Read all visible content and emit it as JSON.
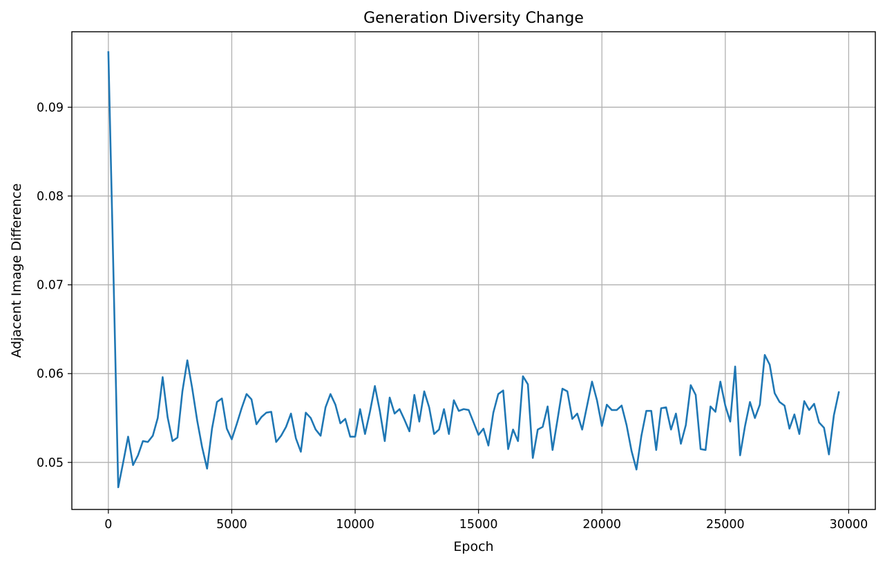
{
  "chart_data": {
    "type": "line",
    "title": "Generation Diversity Change",
    "xlabel": "Epoch",
    "ylabel": "Adjacent Image Difference",
    "xlim": [
      -1480,
      31080
    ],
    "ylim": [
      0.0447,
      0.0985
    ],
    "xticks": [
      0,
      5000,
      10000,
      15000,
      20000,
      25000,
      30000
    ],
    "xtick_labels": [
      "0",
      "5000",
      "10000",
      "15000",
      "20000",
      "25000",
      "30000"
    ],
    "yticks": [
      0.05,
      0.06,
      0.07,
      0.08,
      0.09
    ],
    "ytick_labels": [
      "0.05",
      "0.06",
      "0.07",
      "0.08",
      "0.09"
    ],
    "grid": true,
    "series": [
      {
        "color": "#1f77b4",
        "x": [
          0,
          200,
          400,
          600,
          800,
          1000,
          1200,
          1400,
          1600,
          1800,
          2000,
          2200,
          2400,
          2600,
          2800,
          3000,
          3200,
          3400,
          3600,
          3800,
          4000,
          4200,
          4400,
          4600,
          4800,
          5000,
          5200,
          5400,
          5600,
          5800,
          6000,
          6200,
          6400,
          6600,
          6800,
          7000,
          7200,
          7400,
          7600,
          7800,
          8000,
          8200,
          8400,
          8600,
          8800,
          9000,
          9200,
          9400,
          9600,
          9800,
          10000,
          10200,
          10400,
          10600,
          10800,
          11000,
          11200,
          11400,
          11600,
          11800,
          12000,
          12200,
          12400,
          12600,
          12800,
          13000,
          13200,
          13400,
          13600,
          13800,
          14000,
          14200,
          14400,
          14600,
          14800,
          15000,
          15200,
          15400,
          15600,
          15800,
          16000,
          16200,
          16400,
          16600,
          16800,
          17000,
          17200,
          17400,
          17600,
          17800,
          18000,
          18200,
          18400,
          18600,
          18800,
          19000,
          19200,
          19400,
          19600,
          19800,
          20000,
          20200,
          20400,
          20600,
          20800,
          21000,
          21200,
          21400,
          21600,
          21800,
          22000,
          22200,
          22400,
          22600,
          22800,
          23000,
          23200,
          23400,
          23600,
          23800,
          24000,
          24200,
          24400,
          24600,
          24800,
          25000,
          25200,
          25400,
          25600,
          25800,
          26000,
          26200,
          26400,
          26600,
          26800,
          27000,
          27200,
          27400,
          27600,
          27800,
          28000,
          28200,
          28400,
          28600,
          28800,
          29000,
          29200,
          29400,
          29600
        ],
        "values": [
          0.0962,
          0.072,
          0.0472,
          0.05,
          0.0529,
          0.0497,
          0.0508,
          0.0524,
          0.0523,
          0.053,
          0.055,
          0.0596,
          0.0551,
          0.0524,
          0.0528,
          0.058,
          0.0615,
          0.0583,
          0.0547,
          0.0517,
          0.0493,
          0.0538,
          0.0568,
          0.0572,
          0.0538,
          0.0526,
          0.0543,
          0.0561,
          0.0577,
          0.0571,
          0.0543,
          0.0551,
          0.0556,
          0.0557,
          0.0523,
          0.053,
          0.054,
          0.0555,
          0.0527,
          0.0512,
          0.0556,
          0.055,
          0.0537,
          0.053,
          0.0562,
          0.0577,
          0.0565,
          0.0544,
          0.0549,
          0.0529,
          0.0529,
          0.056,
          0.0532,
          0.0557,
          0.0586,
          0.0558,
          0.0524,
          0.0573,
          0.0555,
          0.056,
          0.0548,
          0.0535,
          0.0576,
          0.0546,
          0.058,
          0.0562,
          0.0532,
          0.0537,
          0.056,
          0.0532,
          0.057,
          0.0558,
          0.056,
          0.0559,
          0.0545,
          0.0531,
          0.0538,
          0.0519,
          0.0556,
          0.0577,
          0.0581,
          0.0515,
          0.0537,
          0.0524,
          0.0597,
          0.0588,
          0.0505,
          0.0537,
          0.054,
          0.0563,
          0.0514,
          0.0548,
          0.0583,
          0.058,
          0.0549,
          0.0555,
          0.0537,
          0.0564,
          0.0591,
          0.057,
          0.0541,
          0.0565,
          0.0559,
          0.0559,
          0.0564,
          0.0542,
          0.0513,
          0.0492,
          0.053,
          0.0558,
          0.0558,
          0.0514,
          0.0561,
          0.0562,
          0.0537,
          0.0555,
          0.0521,
          0.0542,
          0.0587,
          0.0576,
          0.0515,
          0.0514,
          0.0563,
          0.0557,
          0.0591,
          0.0564,
          0.0546,
          0.0608,
          0.0508,
          0.0541,
          0.0568,
          0.055,
          0.0565,
          0.0621,
          0.061,
          0.0578,
          0.0568,
          0.0564,
          0.0538,
          0.0554,
          0.0532,
          0.0569,
          0.0559,
          0.0566,
          0.0545,
          0.0539,
          0.0509,
          0.0553,
          0.0579
        ]
      }
    ]
  }
}
